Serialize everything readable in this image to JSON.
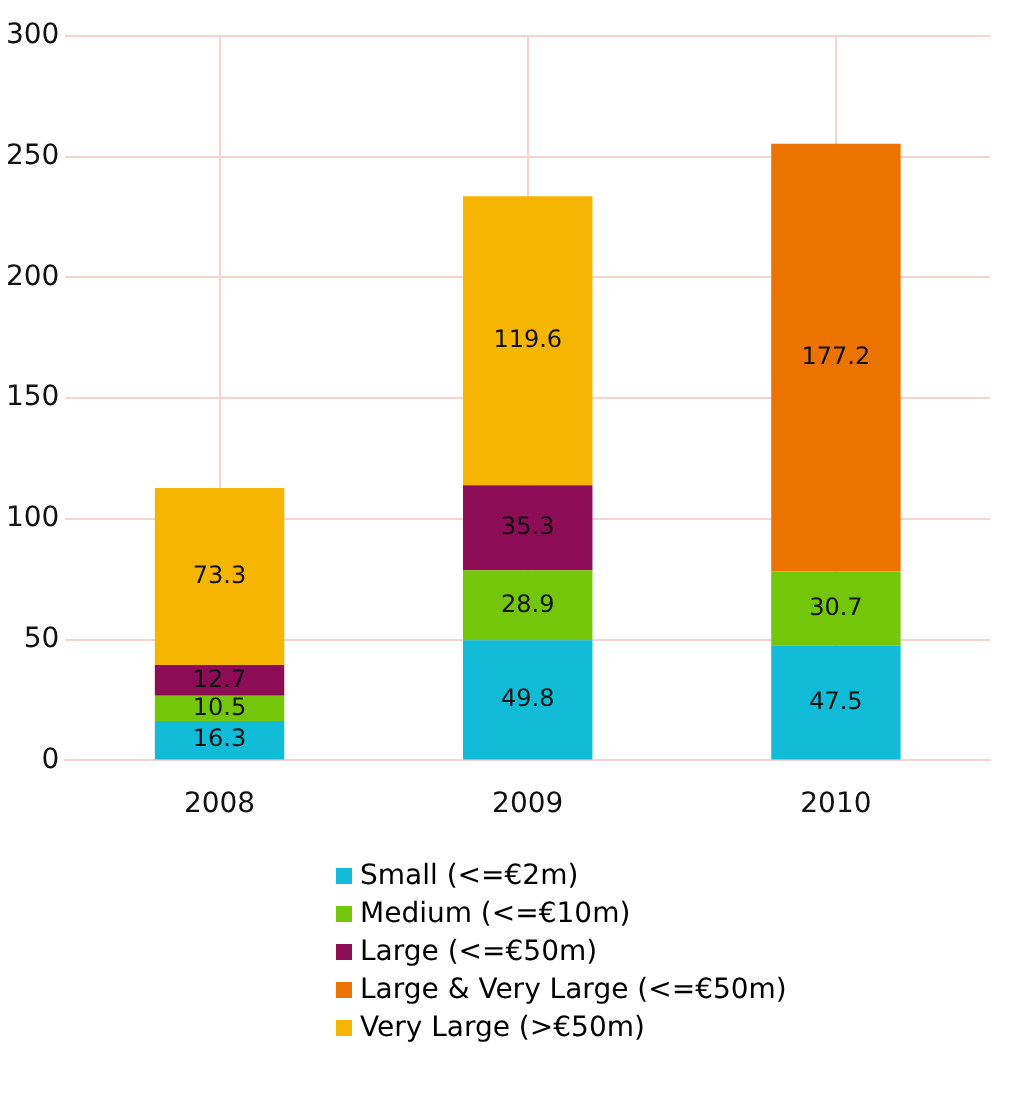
{
  "chart_data": {
    "type": "bar",
    "stacked": true,
    "categories": [
      "2008",
      "2009",
      "2010"
    ],
    "series": [
      {
        "name": "Small (<=€2m)",
        "color": "#12bcd8",
        "values": [
          16.3,
          49.8,
          47.5
        ]
      },
      {
        "name": "Medium (<=€10m)",
        "color": "#74c60a",
        "values": [
          10.5,
          28.9,
          30.7
        ]
      },
      {
        "name": "Large (<=€50m)",
        "color": "#8c0c55",
        "values": [
          12.7,
          35.3,
          null
        ]
      },
      {
        "name": "Large & Very Large (<=€50m)",
        "color": "#ec7300",
        "values": [
          null,
          null,
          177.2
        ]
      },
      {
        "name": "Very Large (>€50m)",
        "color": "#f5b500",
        "values": [
          73.3,
          119.6,
          null
        ]
      }
    ],
    "ylim": [
      0,
      300
    ],
    "yticks": [
      0,
      50,
      100,
      150,
      200,
      250,
      300
    ],
    "grid": true,
    "legend": "bottom",
    "data_labels": true
  }
}
